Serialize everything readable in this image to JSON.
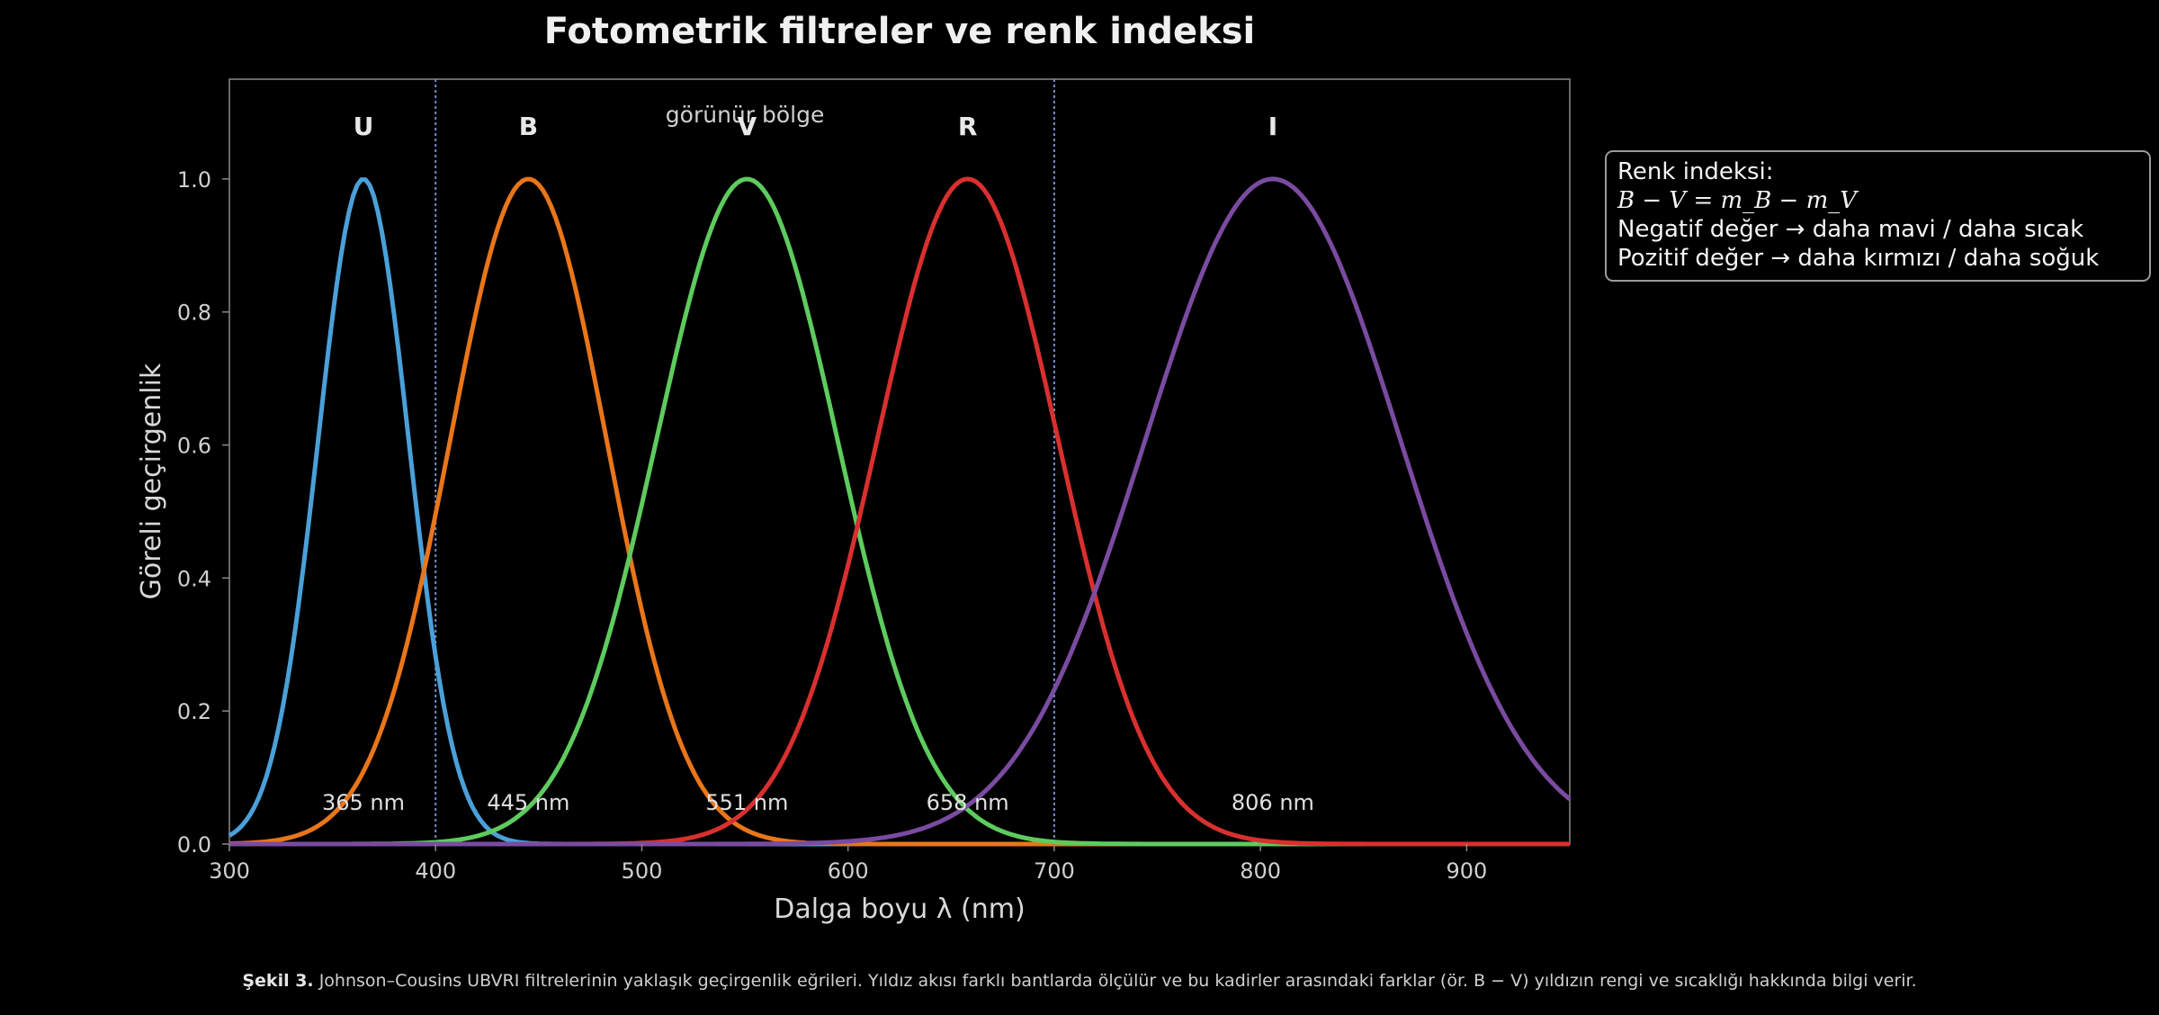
{
  "chart_data": {
    "type": "line",
    "title": "Fotometrik filtreler ve renk indeksi",
    "xlabel": "Dalga boyu λ (nm)",
    "ylabel": "Göreli geçirgenlik",
    "xlim": [
      300,
      950
    ],
    "ylim": [
      0,
      1.15
    ],
    "x_ticks": [
      "300",
      "400",
      "500",
      "600",
      "700",
      "800",
      "900"
    ],
    "y_ticks": [
      "0.0",
      "0.2",
      "0.4",
      "0.6",
      "0.8",
      "1.0"
    ],
    "grid": false,
    "series": [
      {
        "name": "U",
        "center": 365,
        "peak": 1.0,
        "center_label": "365 nm",
        "color": "#4aa0d8",
        "width": 22
      },
      {
        "name": "B",
        "center": 445,
        "peak": 1.0,
        "center_label": "445 nm",
        "color": "#e8761a",
        "width": 38
      },
      {
        "name": "V",
        "center": 551,
        "peak": 1.0,
        "center_label": "551 nm",
        "color": "#5ecb5e",
        "width": 44
      },
      {
        "name": "R",
        "center": 658,
        "peak": 1.0,
        "center_label": "658 nm",
        "color": "#d8302f",
        "width": 44
      },
      {
        "name": "I",
        "center": 806,
        "peak": 1.0,
        "center_label": "806 nm",
        "color": "#7a4ba0",
        "width": 62
      }
    ],
    "visible_region": {
      "label": "görünür bölge",
      "x_start": 400,
      "x_end": 700,
      "line_color": "#6f8fc8"
    },
    "legend_placement": "right, outside plot"
  },
  "info_box": {
    "line1": "Renk indeksi:",
    "line2": "B − V = m_B − m_V",
    "line3": "Negatif değer → daha mavi / daha sıcak",
    "line4": "Pozitif değer → daha kırmızı / daha soğuk"
  },
  "caption": {
    "prefix": "Şekil 3.",
    "text": "Johnson–Cousins UBVRI filtrelerinin yaklaşık geçirgenlik eğrileri. Yıldız akısı farklı bantlarda ölçülür ve bu kadirler arasındaki farklar (ör. B − V) yıldızın rengi ve sıcaklığı hakkında bilgi verir."
  }
}
